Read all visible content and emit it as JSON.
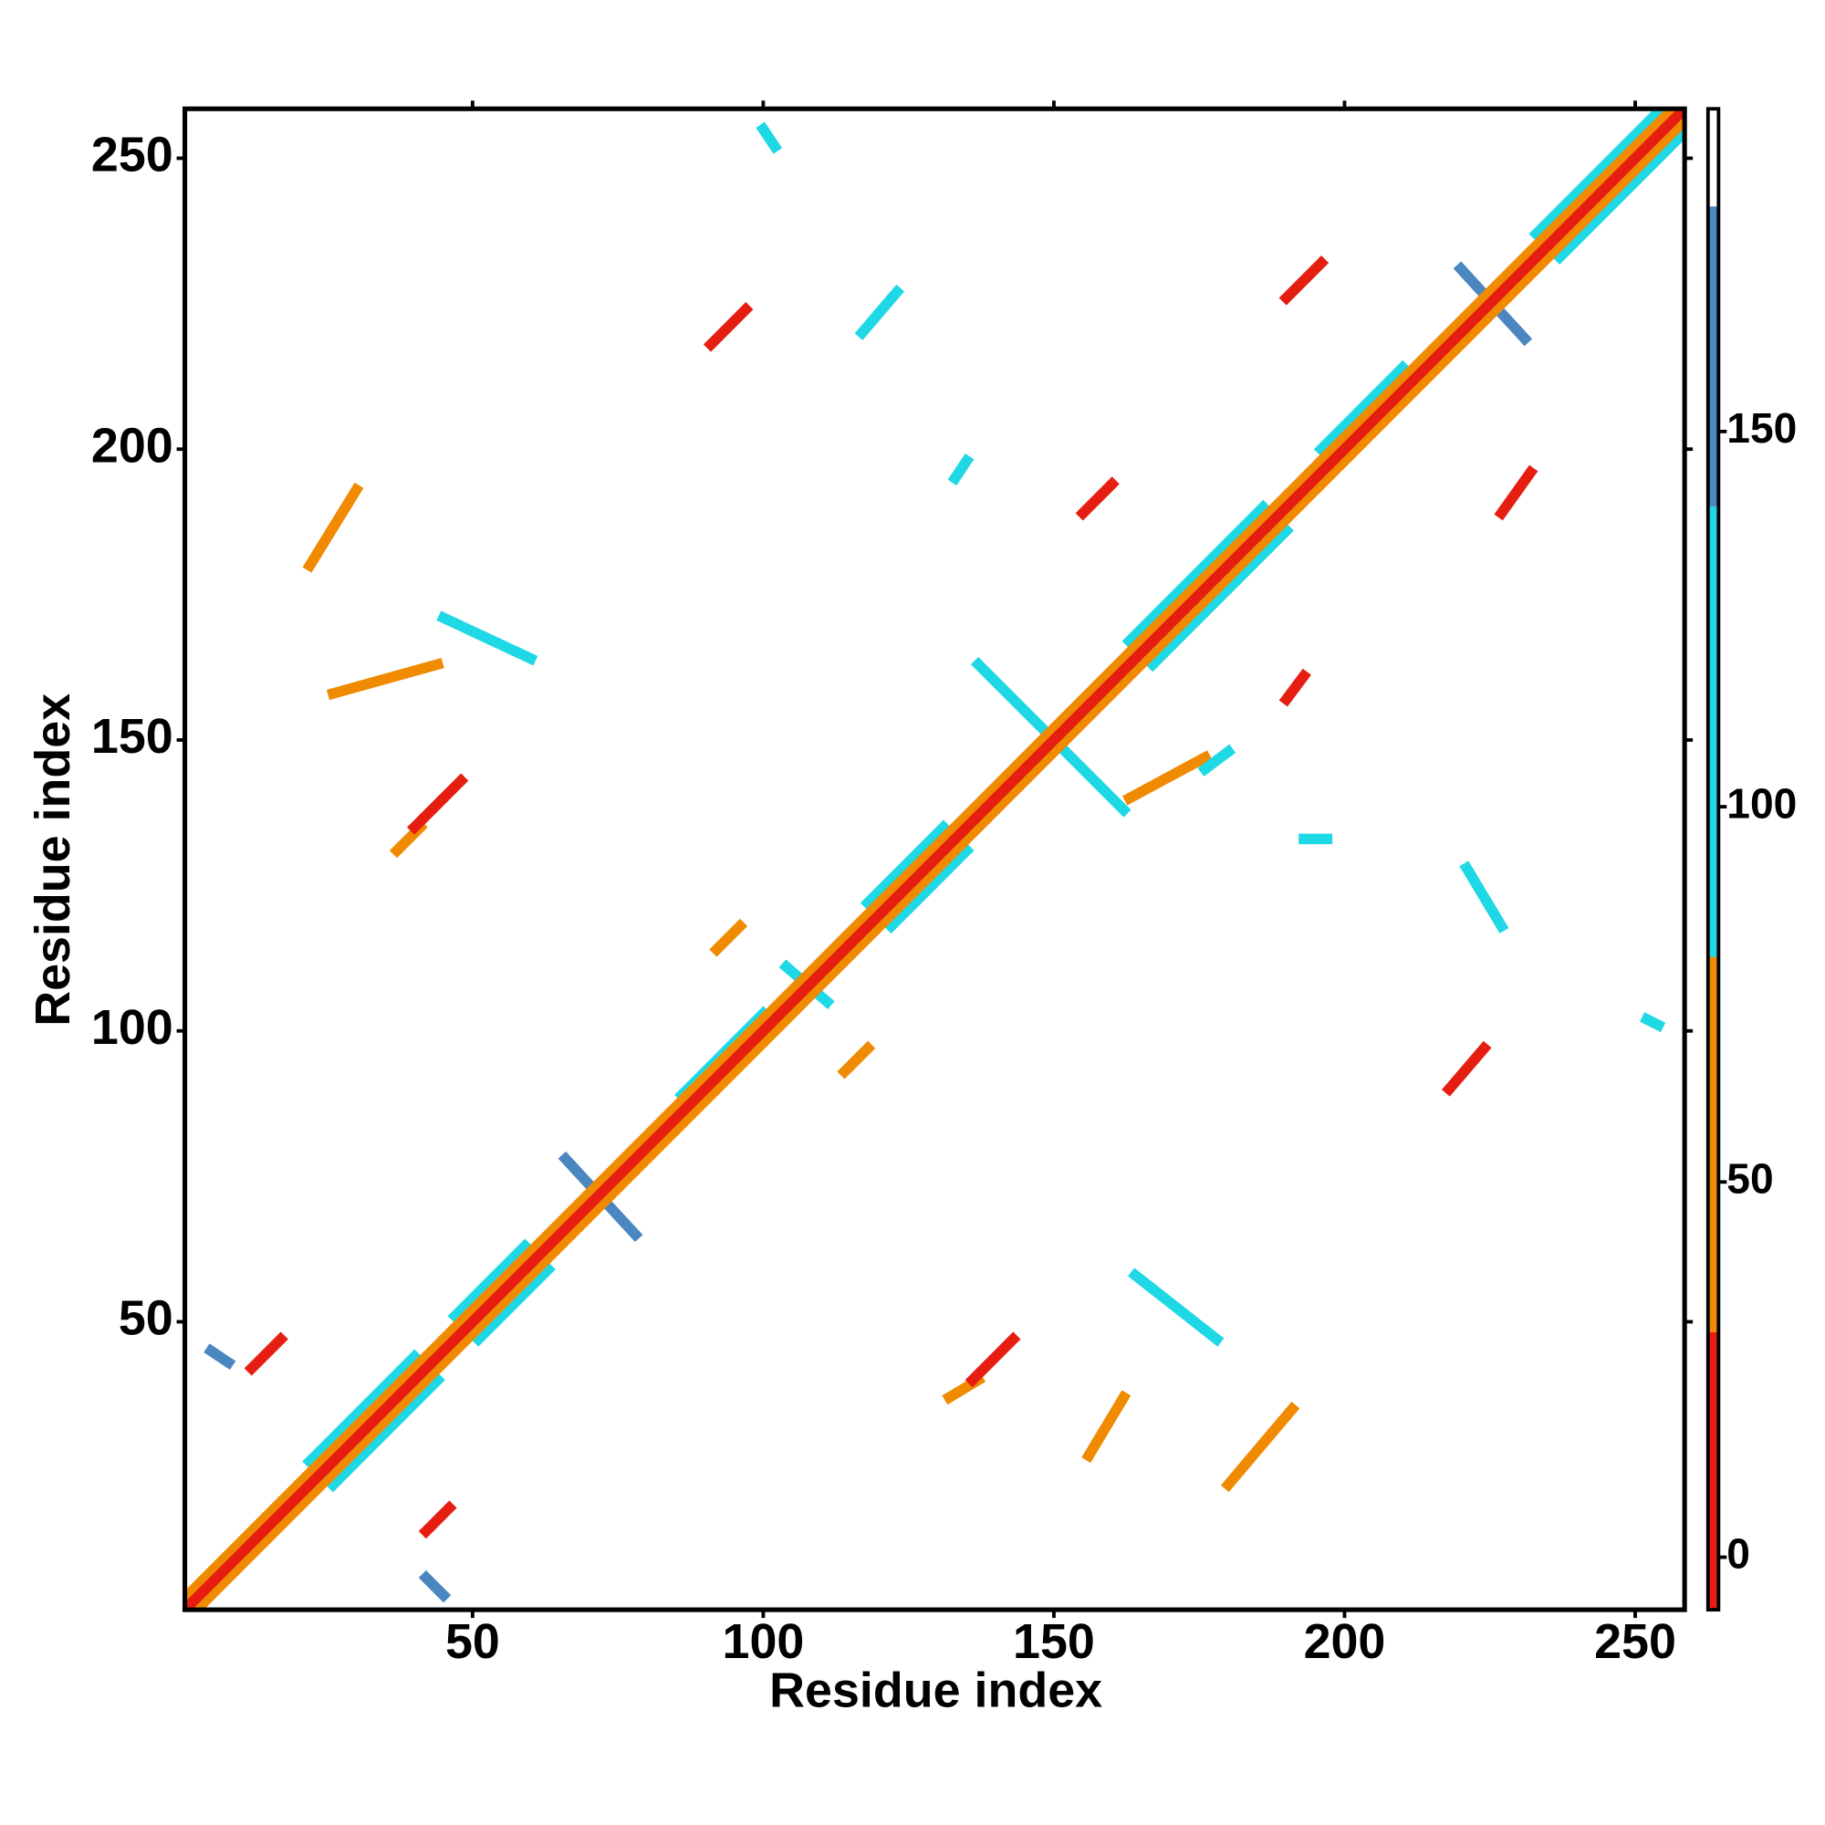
{
  "chart_data": {
    "type": "contact-map",
    "xlabel": "Residue index",
    "ylabel": "Residue index",
    "xlim": [
      0.5,
      258.5
    ],
    "ylim": [
      0.5,
      258.5
    ],
    "xticks": [
      50,
      100,
      150,
      200,
      250
    ],
    "yticks": [
      50,
      100,
      150,
      200,
      250
    ],
    "colorbar": {
      "lim": [
        -7,
        193
      ],
      "ticks": [
        0,
        50,
        100,
        150
      ],
      "bands": [
        {
          "from": -7,
          "to": 30,
          "color": "#e61e12"
        },
        {
          "from": 30,
          "to": 80,
          "color": "#f08a00"
        },
        {
          "from": 80,
          "to": 140,
          "color": "#1ed8e6"
        },
        {
          "from": 140,
          "to": 180,
          "color": "#4a86c0"
        },
        {
          "from": 180,
          "to": 193,
          "color": "#ffffff"
        }
      ]
    },
    "contacts": [
      {
        "x": [
          22,
          26
        ],
        "y": [
          26,
          22
        ],
        "value": 100
      },
      {
        "x": [
          22,
          40
        ],
        "y": [
          26,
          44
        ],
        "value": 100
      },
      {
        "x": [
          26,
          44
        ],
        "y": [
          22,
          40
        ],
        "value": 100
      },
      {
        "x": [
          47,
          59
        ],
        "y": [
          51,
          63
        ],
        "value": 100
      },
      {
        "x": [
          51,
          63
        ],
        "y": [
          47,
          59
        ],
        "value": 100
      },
      {
        "x": [
          118,
          131
        ],
        "y": [
          122,
          135
        ],
        "value": 100
      },
      {
        "x": [
          122,
          135
        ],
        "y": [
          118,
          131
        ],
        "value": 100
      },
      {
        "x": [
          163,
          186
        ],
        "y": [
          167,
          190
        ],
        "value": 100
      },
      {
        "x": [
          167,
          190
        ],
        "y": [
          163,
          186
        ],
        "value": 100
      },
      {
        "x": [
          233,
          254
        ],
        "y": [
          237,
          258
        ],
        "value": 100
      },
      {
        "x": [
          237,
          258
        ],
        "y": [
          233,
          254
        ],
        "value": 100
      },
      {
        "x": [
          196,
          210
        ],
        "y": [
          200,
          214
        ],
        "value": 100
      },
      {
        "x": [
          86,
          100
        ],
        "y": [
          89,
          103
        ],
        "value": 100
      },
      {
        "x": [
          66,
          78
        ],
        "y": [
          78,
          65
        ],
        "value": 145
      },
      {
        "x": [
          137,
          162
        ],
        "y": [
          163,
          138
        ],
        "value": 135
      },
      {
        "x": [
          220,
          231
        ],
        "y": [
          231,
          219
        ],
        "value": 165
      },
      {
        "x": [
          104,
          111
        ],
        "y": [
          111,
          105
        ],
        "value": 120
      },
      {
        "x": [
          1,
          256
        ],
        "y": [
          3,
          258
        ],
        "value": 50
      },
      {
        "x": [
          3,
          258
        ],
        "y": [
          1,
          256
        ],
        "value": 50
      },
      {
        "x": [
          1,
          258
        ],
        "y": [
          1,
          258
        ],
        "value": 5
      },
      {
        "x": [
          12,
          17
        ],
        "y": [
          42,
          47
        ],
        "value": 10
      },
      {
        "x": [
          42,
          46
        ],
        "y": [
          14,
          18
        ],
        "value": 10
      },
      {
        "x": [
          132,
          137
        ],
        "y": [
          37,
          40
        ],
        "value": 50
      },
      {
        "x": [
          136,
          143
        ],
        "y": [
          40,
          47
        ],
        "value": 10
      },
      {
        "x": [
          37,
          41
        ],
        "y": [
          131,
          135
        ],
        "value": 50
      },
      {
        "x": [
          40,
          48
        ],
        "y": [
          135,
          143
        ],
        "value": 10
      },
      {
        "x": [
          91,
          97
        ],
        "y": [
          218,
          224
        ],
        "value": 10
      },
      {
        "x": [
          190,
          196
        ],
        "y": [
          226,
          232
        ],
        "value": 10
      },
      {
        "x": [
          227,
          232
        ],
        "y": [
          189,
          196
        ],
        "value": 10
      },
      {
        "x": [
          218,
          224
        ],
        "y": [
          90,
          97
        ],
        "value": 10
      },
      {
        "x": [
          114,
          118
        ],
        "y": [
          93,
          97
        ],
        "value": 50
      },
      {
        "x": [
          92,
          96
        ],
        "y": [
          114,
          118
        ],
        "value": 50
      },
      {
        "x": [
          155,
          160
        ],
        "y": [
          189,
          194
        ],
        "value": 10
      },
      {
        "x": [
          190,
          193
        ],
        "y": [
          157,
          161
        ],
        "value": 10
      },
      {
        "x": [
          5,
          8
        ],
        "y": [
          45,
          43
        ],
        "value": 165
      },
      {
        "x": [
          42,
          45
        ],
        "y": [
          6,
          3
        ],
        "value": 165
      },
      {
        "x": [
          193,
          197
        ],
        "y": [
          133,
          133
        ],
        "value": 100
      },
      {
        "x": [
          133,
          135
        ],
        "y": [
          195,
          198
        ],
        "value": 100
      },
      {
        "x": [
          100,
          102
        ],
        "y": [
          255,
          252
        ],
        "value": 100
      },
      {
        "x": [
          252,
          254
        ],
        "y": [
          102,
          101
        ],
        "value": 100
      },
      {
        "x": [
          22,
          30
        ],
        "y": [
          180,
          193
        ],
        "value": 60
      },
      {
        "x": [
          26,
          44
        ],
        "y": [
          158,
          163
        ],
        "value": 55
      },
      {
        "x": [
          156,
          162
        ],
        "y": [
          27,
          37
        ],
        "value": 55
      },
      {
        "x": [
          180,
          191
        ],
        "y": [
          22,
          35
        ],
        "value": 55
      },
      {
        "x": [
          163,
          176
        ],
        "y": [
          140,
          147
        ],
        "value": 60
      },
      {
        "x": [
          176,
          180
        ],
        "y": [
          145,
          148
        ],
        "value": 100
      },
      {
        "x": [
          45,
          60
        ],
        "y": [
          171,
          164
        ],
        "value": 100
      },
      {
        "x": [
          164,
          178
        ],
        "y": [
          58,
          47
        ],
        "value": 100
      },
      {
        "x": [
          221,
          227
        ],
        "y": [
          128,
          118
        ],
        "value": 100
      },
      {
        "x": [
          117,
          123
        ],
        "y": [
          220,
          227
        ],
        "value": 100
      }
    ]
  }
}
